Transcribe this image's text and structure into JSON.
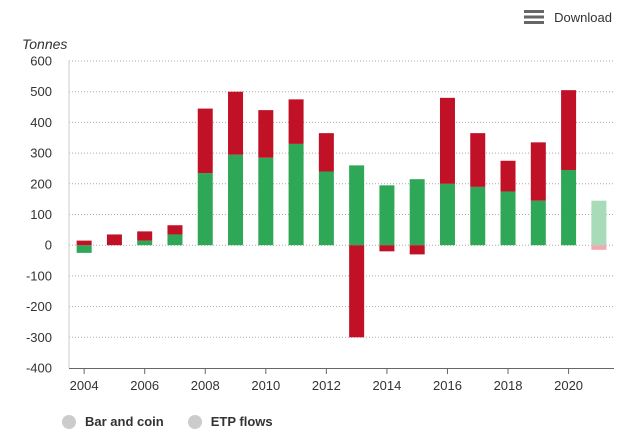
{
  "toolbar": {
    "download_label": "Download",
    "download_icon": "hamburger-menu-icon"
  },
  "colors": {
    "bar_and_coin": "#2ea757",
    "etp_flows": "#c01127",
    "bar_and_coin_light": "#a8dcb9",
    "etp_flows_light": "#f2a8b1",
    "legend_dot": "#cccccc"
  },
  "chart_data": {
    "type": "bar",
    "stacked": true,
    "title": "",
    "ylabel": "Tonnes",
    "xlabel": "",
    "ylim": [
      -400,
      600
    ],
    "yticks": [
      600,
      500,
      400,
      300,
      200,
      100,
      0,
      -100,
      -200,
      -300,
      -400
    ],
    "xtick_labels": [
      "2004",
      "2006",
      "2008",
      "2010",
      "2012",
      "2014",
      "2016",
      "2018",
      "2020"
    ],
    "categories": [
      "2004",
      "2005",
      "2006",
      "2007",
      "2008",
      "2009",
      "2010",
      "2011",
      "2012",
      "2013",
      "2014",
      "2015",
      "2016",
      "2017",
      "2018",
      "2019",
      "2020",
      "2021"
    ],
    "series": [
      {
        "name": "Bar and coin",
        "values": [
          -25,
          0,
          15,
          35,
          235,
          295,
          285,
          330,
          240,
          260,
          195,
          215,
          200,
          190,
          175,
          145,
          245,
          145
        ]
      },
      {
        "name": "ETP flows",
        "values": [
          15,
          35,
          30,
          30,
          210,
          205,
          155,
          145,
          125,
          -300,
          -20,
          -30,
          280,
          175,
          100,
          190,
          260,
          -15
        ]
      }
    ],
    "partial_category": "2021",
    "grid": true,
    "legend_position": "bottom-left"
  },
  "legend": {
    "items": [
      {
        "label": "Bar and coin"
      },
      {
        "label": "ETP flows"
      }
    ]
  }
}
